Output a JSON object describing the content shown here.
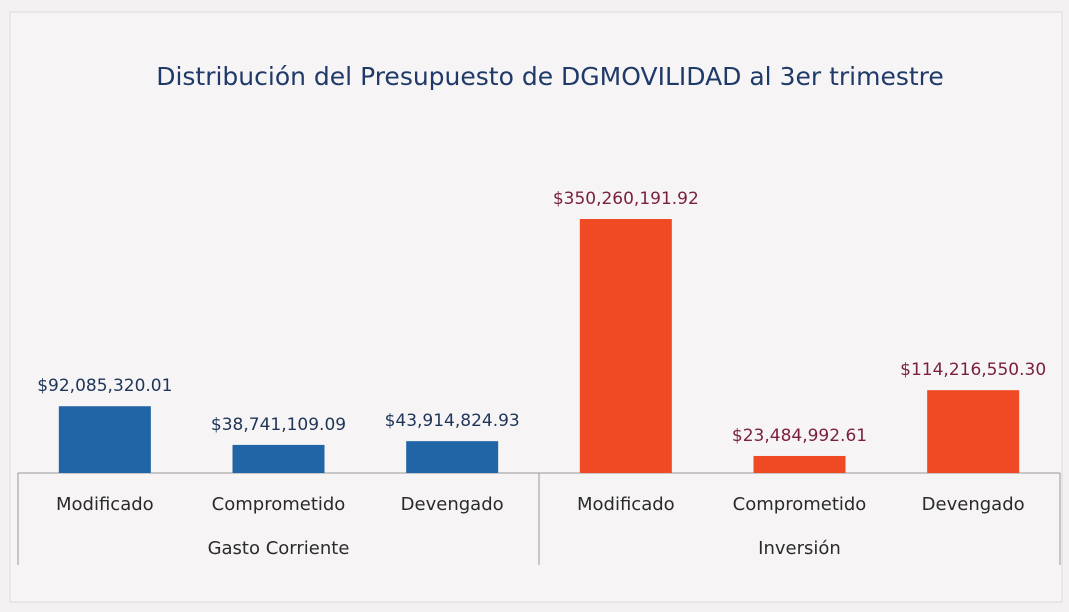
{
  "chart_data": {
    "type": "bar",
    "title": "Distribución del Presupuesto de DGMOVILIDAD al 3er trimestre",
    "groups": [
      {
        "name": "Gasto Corriente",
        "color": "#2265a6",
        "label_color": "#1e3558",
        "categories": [
          "Modificado",
          "Comprometido",
          "Devengado"
        ],
        "values": [
          92085320.01,
          38741109.09,
          43914824.93
        ],
        "value_labels": [
          "$92,085,320.01",
          "$38,741,109.09",
          "$43,914,824.93"
        ]
      },
      {
        "name": "Inversión",
        "color": "#ef4a24",
        "label_color": "#7a1f3d",
        "categories": [
          "Modificado",
          "Comprometido",
          "Devengado"
        ],
        "values": [
          350260191.92,
          23484992.61,
          114216550.3
        ],
        "value_labels": [
          "$350,260,191.92",
          "$23,484,992.61",
          "$114,216,550.30"
        ]
      }
    ]
  }
}
